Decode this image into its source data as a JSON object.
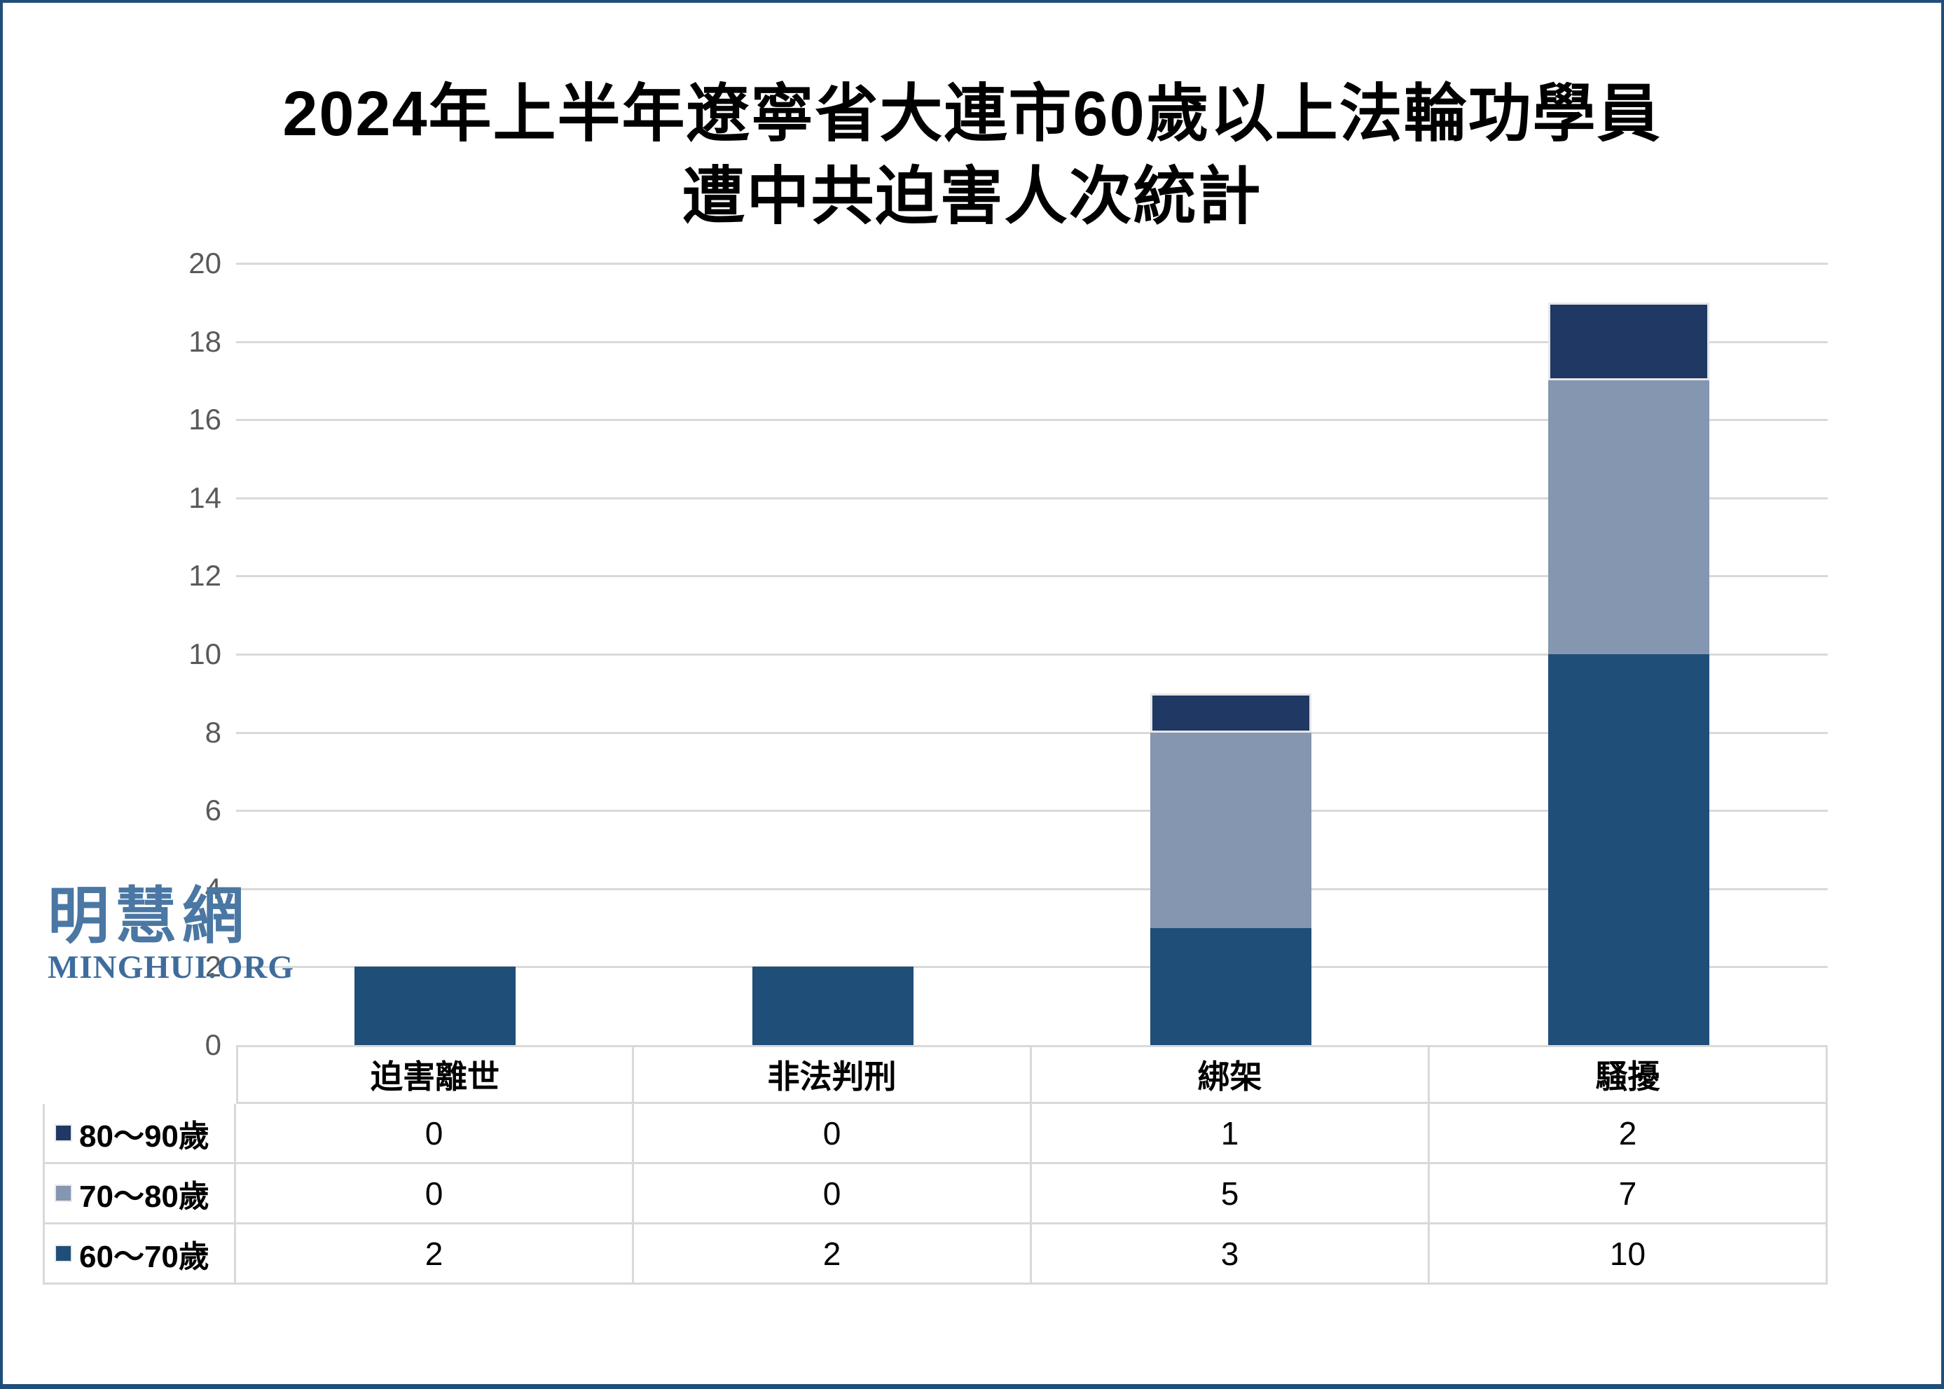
{
  "title": {
    "line1": "2024年上半年遼寧省大連市60歲以上法輪功學員",
    "line2": "遭中共迫害人次統計"
  },
  "watermark": {
    "chinese": "明慧網",
    "latin": "MINGHUI.ORG"
  },
  "colors": {
    "series_80_90": "#1F3864",
    "series_70_80": "#8496B0",
    "series_60_70": "#1F4E79",
    "gridline": "#D9D9D9",
    "axis_text": "#595959",
    "page_border": "#1F4E79",
    "watermark_blue": "#4A77A3"
  },
  "chart_data": {
    "type": "bar",
    "stacked": true,
    "title": "2024年上半年遼寧省大連市60歲以上法輪功學員遭中共迫害人次統計",
    "categories": [
      "迫害離世",
      "非法判刑",
      "綁架",
      "騷擾"
    ],
    "series": [
      {
        "name": "80～90歲",
        "color": "#1F3864",
        "outline": true,
        "values": [
          0,
          0,
          1,
          2
        ]
      },
      {
        "name": "70～80歲",
        "color": "#8496B0",
        "outline": false,
        "values": [
          0,
          0,
          5,
          7
        ]
      },
      {
        "name": "60～70歲",
        "color": "#1F4E79",
        "outline": false,
        "values": [
          2,
          2,
          3,
          10
        ]
      }
    ],
    "stack_order_bottom_to_top": [
      "60～70歲",
      "70～80歲",
      "80～90歲"
    ],
    "category_totals": [
      2,
      2,
      9,
      19
    ],
    "ylim": [
      0,
      20
    ],
    "yticks": [
      0,
      2,
      4,
      6,
      8,
      10,
      12,
      14,
      16,
      18,
      20
    ],
    "xlabel": "",
    "ylabel": "",
    "grid": true,
    "legend_position": "data-table-left",
    "data_table_shown": true
  }
}
